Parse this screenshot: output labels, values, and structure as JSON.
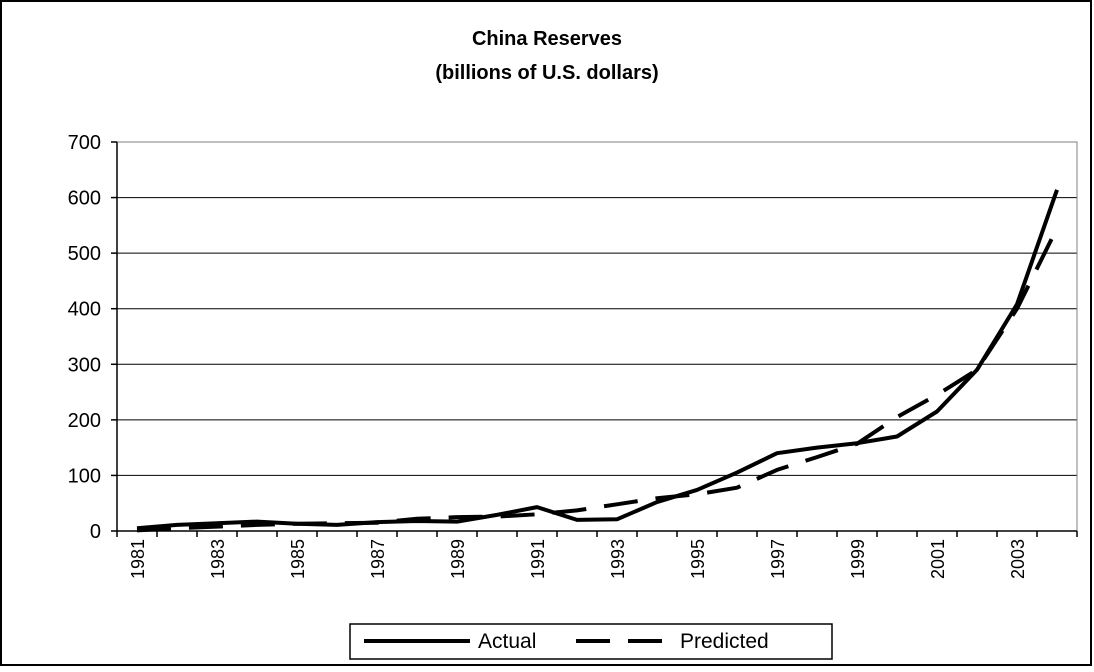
{
  "chart_data": {
    "type": "line",
    "title": "China Reserves",
    "subtitle": "(billions of U.S. dollars)",
    "xlabel": "",
    "ylabel": "",
    "ylim": [
      0,
      700
    ],
    "yticks": [
      "0",
      "100",
      "200",
      "300",
      "400",
      "500",
      "600",
      "700"
    ],
    "x": [
      1981,
      1982,
      1983,
      1984,
      1985,
      1986,
      1987,
      1988,
      1989,
      1990,
      1991,
      1992,
      1993,
      1994,
      1995,
      1996,
      1997,
      1998,
      1999,
      2000,
      2001,
      2002,
      2003,
      2004
    ],
    "xtick_labels": [
      "1981",
      "1983",
      "1985",
      "1987",
      "1989",
      "1991",
      "1993",
      "1995",
      "1997",
      "1999",
      "2001",
      "2003"
    ],
    "grid": "horizontal",
    "legend_position": "bottom",
    "series": [
      {
        "name": "Actual",
        "style": "solid",
        "color": "#000000",
        "values": [
          5,
          11,
          14,
          17,
          13,
          11,
          16,
          18,
          17,
          29,
          43,
          20,
          21,
          52,
          74,
          105,
          140,
          150,
          158,
          170,
          215,
          290,
          408,
          614
        ]
      },
      {
        "name": "Predicted",
        "style": "dashed",
        "color": "#000000",
        "values": [
          1,
          5,
          8,
          11,
          13,
          14,
          15,
          22,
          25,
          26,
          30,
          37,
          48,
          59,
          66,
          78,
          110,
          133,
          157,
          205,
          245,
          290,
          400,
          545
        ]
      }
    ]
  }
}
